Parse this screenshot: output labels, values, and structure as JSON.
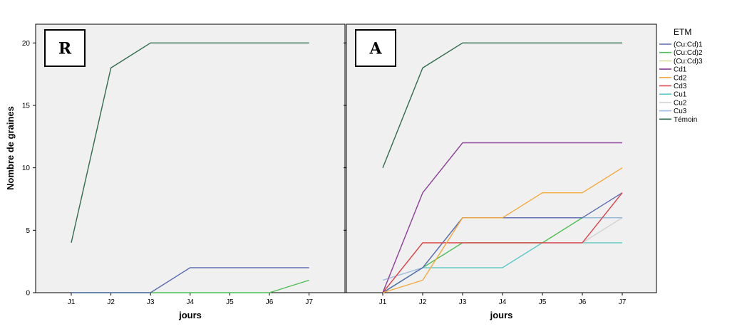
{
  "chart_data": {
    "type": "line",
    "ylabel": "Nombre de graines",
    "ylim": [
      0,
      21.5
    ],
    "yticks": [
      0,
      5,
      10,
      15,
      20
    ],
    "grid": false,
    "legend": {
      "title": "ETM",
      "placement": "right",
      "entries": [
        {
          "name": "(Cu:Cd)1",
          "color": "#5a6bb0"
        },
        {
          "name": "(Cu:Cd)2",
          "color": "#4cbf55"
        },
        {
          "name": "(Cu:Cd)3",
          "color": "#d8dca0"
        },
        {
          "name": "Cd1",
          "color": "#8a3d96"
        },
        {
          "name": "Cd2",
          "color": "#f4a93c"
        },
        {
          "name": "Cd3",
          "color": "#e0404a"
        },
        {
          "name": "Cu1",
          "color": "#5fcac6"
        },
        {
          "name": "Cu2",
          "color": "#d3d3d3"
        },
        {
          "name": "Cu3",
          "color": "#9cbbe0"
        },
        {
          "name": "Témoin",
          "color": "#2f6b4c"
        }
      ]
    },
    "panels": [
      {
        "label": "R",
        "xlabel": "jours",
        "categories": [
          "J1",
          "J2",
          "J3",
          "J4",
          "J5",
          "J6",
          "J7"
        ],
        "series": [
          {
            "name": "Témoin",
            "color": "#2f6b4c",
            "values": [
              4,
              18,
              20,
              20,
              20,
              20,
              20
            ]
          },
          {
            "name": "(Cu:Cd)1",
            "color": "#5a6bb0",
            "values": [
              0,
              0,
              0,
              2,
              2,
              2,
              2
            ]
          },
          {
            "name": "(Cu:Cd)2",
            "color": "#4cbf55",
            "values": [
              0,
              0,
              0,
              0,
              0,
              0,
              1
            ]
          }
        ]
      },
      {
        "label": "A",
        "xlabel": "jours",
        "categories": [
          "J1",
          "J2",
          "J3",
          "J4",
          "J5",
          "J6",
          "J7"
        ],
        "series": [
          {
            "name": "Témoin",
            "color": "#2f6b4c",
            "values": [
              10,
              18,
              20,
              20,
              20,
              20,
              20
            ]
          },
          {
            "name": "Cd1",
            "color": "#8a3d96",
            "values": [
              0,
              8,
              12,
              12,
              12,
              12,
              12
            ]
          },
          {
            "name": "Cd2",
            "color": "#f4a93c",
            "values": [
              0,
              1,
              6,
              6,
              8,
              8,
              10
            ]
          },
          {
            "name": "Cd3",
            "color": "#e0404a",
            "values": [
              0,
              4,
              4,
              4,
              4,
              4,
              8
            ]
          },
          {
            "name": "(Cu:Cd)1",
            "color": "#5a6bb0",
            "values": [
              0,
              2,
              6,
              6,
              6,
              6,
              8
            ]
          },
          {
            "name": "Cu3",
            "color": "#9cbbe0",
            "values": [
              1,
              2,
              6,
              6,
              6,
              6,
              6
            ]
          },
          {
            "name": "(Cu:Cd)2",
            "color": "#4cbf55",
            "values": [
              0,
              2,
              4,
              4,
              4,
              6,
              6
            ]
          },
          {
            "name": "(Cu:Cd)3",
            "color": "#d8dca0",
            "values": [
              0,
              4,
              4,
              4,
              4,
              6,
              6
            ]
          },
          {
            "name": "Cu2",
            "color": "#d3d3d3",
            "values": [
              0,
              4,
              4,
              4,
              4,
              4,
              6
            ]
          },
          {
            "name": "Cu1",
            "color": "#5fcac6",
            "values": [
              0,
              2,
              2,
              2,
              4,
              4,
              4
            ]
          }
        ]
      }
    ]
  }
}
